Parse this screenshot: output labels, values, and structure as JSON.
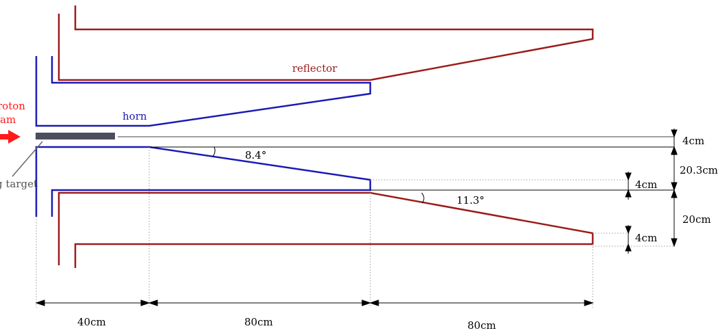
{
  "labels": {
    "proton_beam_line1": "roton",
    "proton_beam_line2": "am",
    "target": "g target",
    "horn": "horn",
    "reflector": "reflector",
    "angle_horn": "8.4°",
    "angle_reflector": "11.3°"
  },
  "dimensions": {
    "gap_center": "4cm",
    "horn_half": "20.3cm",
    "horn_thickness": "4cm",
    "reflector_half": "20cm",
    "reflector_thickness": "4cm",
    "len_target_section": "40cm",
    "len_horn_taper": "80cm",
    "len_reflector_taper": "80cm"
  },
  "colors": {
    "horn": "#1a1ab5",
    "reflector": "#9b1b1b",
    "beam": "#ff1a1a",
    "target": "#4a4e5e",
    "pointer": "#666666"
  }
}
